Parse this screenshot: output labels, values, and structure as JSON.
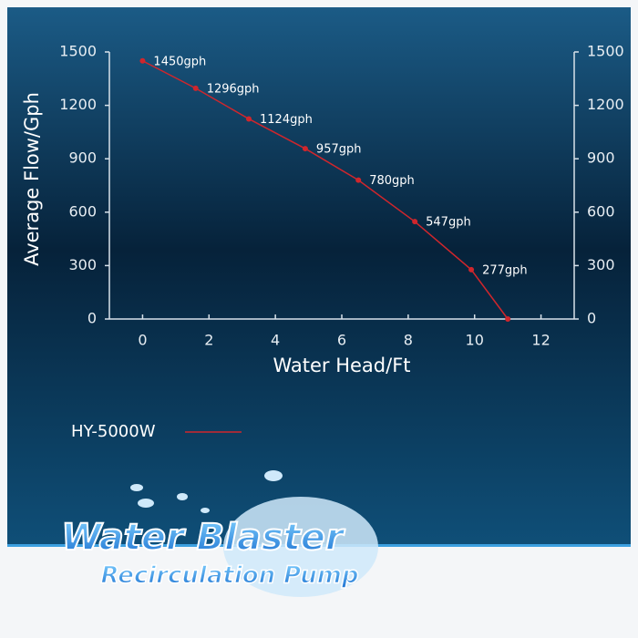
{
  "chart_data": {
    "type": "line",
    "x": [
      0,
      1.6,
      3.2,
      4.9,
      6.5,
      8.2,
      9.9,
      11
    ],
    "series": [
      {
        "name": "HY-5000W",
        "color": "#d0262c",
        "values": [
          1450,
          1296,
          1124,
          957,
          780,
          547,
          277,
          0
        ],
        "value_labels": [
          "1450gph",
          "1296gph",
          "1124gph",
          "957gph",
          "780gph",
          "547gph",
          "277gph",
          null
        ]
      }
    ],
    "xlim": [
      -1,
      13
    ],
    "xticks": [
      0,
      2,
      4,
      6,
      8,
      10,
      12
    ],
    "ylim": [
      0,
      1500
    ],
    "yticks": [
      0,
      300,
      600,
      900,
      1200,
      1500
    ],
    "y2lim": [
      0,
      1500
    ],
    "y2ticks": [
      0,
      300,
      600,
      900,
      1200,
      1500
    ],
    "xlabel": "Water Head/Ft",
    "ylabel": "Average Flow/Gph"
  },
  "logo": {
    "line1": "Water Blaster",
    "line2": "Recirculation Pump"
  }
}
